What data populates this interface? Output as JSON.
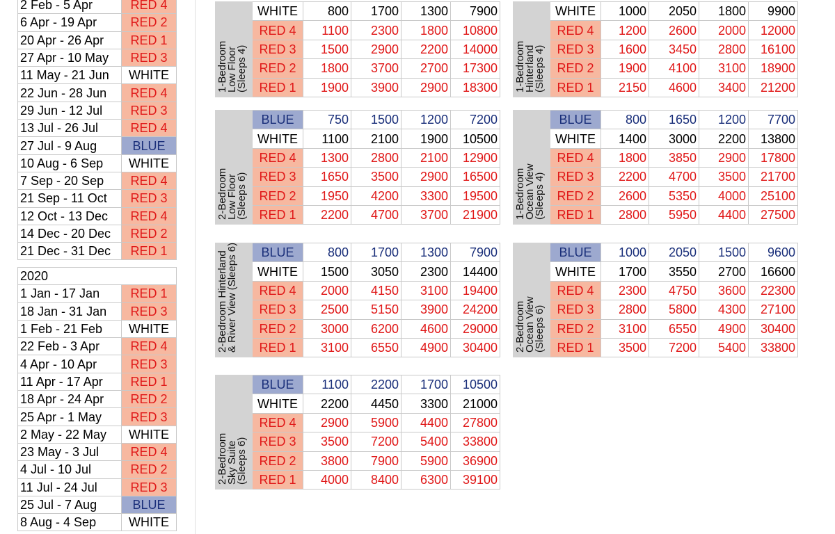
{
  "colors": {
    "blue": "#9da9cf",
    "red": "#f7b8a0",
    "red_text": "#e01818",
    "blue_text": "#1a2f7a"
  },
  "calendar_2019": [
    {
      "dates": "2 Feb - 5 Apr",
      "season": "RED 4"
    },
    {
      "dates": "6 Apr - 19 Apr",
      "season": "RED 2"
    },
    {
      "dates": "20 Apr - 26 Apr",
      "season": "RED 1"
    },
    {
      "dates": "27 Apr - 10 May",
      "season": "RED 3"
    },
    {
      "dates": "11 May - 21 Jun",
      "season": "WHITE"
    },
    {
      "dates": "22 Jun - 28 Jun",
      "season": "RED 4"
    },
    {
      "dates": "29 Jun - 12 Jul",
      "season": "RED 3"
    },
    {
      "dates": "13 Jul - 26 Jul",
      "season": "RED 4"
    },
    {
      "dates": "27 Jul - 9 Aug",
      "season": "BLUE"
    },
    {
      "dates": "10 Aug - 6 Sep",
      "season": "WHITE"
    },
    {
      "dates": "7 Sep - 20 Sep",
      "season": "RED 4"
    },
    {
      "dates": "21 Sep - 11 Oct",
      "season": "RED 3"
    },
    {
      "dates": "12 Oct - 13 Dec",
      "season": "RED 4"
    },
    {
      "dates": "14 Dec - 20 Dec",
      "season": "RED 2"
    },
    {
      "dates": "21 Dec - 31 Dec",
      "season": "RED 1"
    }
  ],
  "calendar_2020_year": "2020",
  "calendar_2020": [
    {
      "dates": "1 Jan - 17 Jan",
      "season": "RED 1"
    },
    {
      "dates": "18 Jan - 31 Jan",
      "season": "RED 3"
    },
    {
      "dates": "1 Feb - 21 Feb",
      "season": "WHITE"
    },
    {
      "dates": "22 Feb - 3 Apr",
      "season": "RED 4"
    },
    {
      "dates": "4 Apr - 10 Apr",
      "season": "RED 3"
    },
    {
      "dates": "11 Apr - 17 Apr",
      "season": "RED 1"
    },
    {
      "dates": "18 Apr - 24 Apr",
      "season": "RED 2"
    },
    {
      "dates": "25 Apr - 1 May",
      "season": "RED 3"
    },
    {
      "dates": "2 May - 22 May",
      "season": "WHITE"
    },
    {
      "dates": "23 May - 3 Jul",
      "season": "RED 4"
    },
    {
      "dates": "4 Jul - 10 Jul",
      "season": "RED 2"
    },
    {
      "dates": "11 Jul - 24 Jul",
      "season": "RED 3"
    },
    {
      "dates": "25 Jul - 7 Aug",
      "season": "BLUE"
    },
    {
      "dates": "8 Aug - 4 Sep",
      "season": "WHITE"
    }
  ],
  "blocks": [
    {
      "label_lines": [
        "1-Bedroom",
        "Low Floor",
        "(Sleeps 4)"
      ],
      "rows": [
        {
          "season": "WHITE",
          "values": [
            "800",
            "1700",
            "1300",
            "7900"
          ]
        },
        {
          "season": "RED 4",
          "values": [
            "1100",
            "2300",
            "1800",
            "10800"
          ]
        },
        {
          "season": "RED 3",
          "values": [
            "1500",
            "2900",
            "2200",
            "14000"
          ]
        },
        {
          "season": "RED 2",
          "values": [
            "1800",
            "3700",
            "2700",
            "17300"
          ]
        },
        {
          "season": "RED 1",
          "values": [
            "1900",
            "3900",
            "2900",
            "18300"
          ]
        }
      ]
    },
    {
      "label_lines": [
        "1-Bedroom",
        "Hinterland",
        "(Sleeps 4)"
      ],
      "rows": [
        {
          "season": "WHITE",
          "values": [
            "1000",
            "2050",
            "1800",
            "9900"
          ]
        },
        {
          "season": "RED 4",
          "values": [
            "1200",
            "2600",
            "2000",
            "12000"
          ]
        },
        {
          "season": "RED 3",
          "values": [
            "1600",
            "3450",
            "2800",
            "16100"
          ]
        },
        {
          "season": "RED 2",
          "values": [
            "1900",
            "4100",
            "3100",
            "18900"
          ]
        },
        {
          "season": "RED 1",
          "values": [
            "2150",
            "4600",
            "3400",
            "21200"
          ]
        }
      ]
    },
    {
      "label_lines": [
        "2-Bedroom",
        "Low Floor",
        "(Sleeps 6)"
      ],
      "rows": [
        {
          "season": "BLUE",
          "values": [
            "750",
            "1500",
            "1200",
            "7200"
          ]
        },
        {
          "season": "WHITE",
          "values": [
            "1100",
            "2100",
            "1900",
            "10500"
          ]
        },
        {
          "season": "RED 4",
          "values": [
            "1300",
            "2800",
            "2100",
            "12900"
          ]
        },
        {
          "season": "RED 3",
          "values": [
            "1650",
            "3500",
            "2900",
            "16500"
          ]
        },
        {
          "season": "RED 2",
          "values": [
            "1950",
            "4200",
            "3300",
            "19500"
          ]
        },
        {
          "season": "RED 1",
          "values": [
            "2200",
            "4700",
            "3700",
            "21900"
          ]
        }
      ]
    },
    {
      "label_lines": [
        "1-Bedroom",
        "Ocean View",
        "(Sleeps 4)"
      ],
      "rows": [
        {
          "season": "BLUE",
          "values": [
            "800",
            "1650",
            "1200",
            "7700"
          ]
        },
        {
          "season": "WHITE",
          "values": [
            "1400",
            "3000",
            "2200",
            "13800"
          ]
        },
        {
          "season": "RED 4",
          "values": [
            "1800",
            "3850",
            "2900",
            "17800"
          ]
        },
        {
          "season": "RED 3",
          "values": [
            "2200",
            "4700",
            "3500",
            "21700"
          ]
        },
        {
          "season": "RED 2",
          "values": [
            "2600",
            "5350",
            "4000",
            "25100"
          ]
        },
        {
          "season": "RED 1",
          "values": [
            "2800",
            "5950",
            "4400",
            "27500"
          ]
        }
      ]
    },
    {
      "label_lines": [
        "2-Bedroom Hinterland",
        "& River View (Sleeps 6)"
      ],
      "rows": [
        {
          "season": "BLUE",
          "values": [
            "800",
            "1700",
            "1300",
            "7900"
          ]
        },
        {
          "season": "WHITE",
          "values": [
            "1500",
            "3050",
            "2300",
            "14400"
          ]
        },
        {
          "season": "RED 4",
          "values": [
            "2000",
            "4150",
            "3100",
            "19400"
          ]
        },
        {
          "season": "RED 3",
          "values": [
            "2500",
            "5150",
            "3900",
            "24200"
          ]
        },
        {
          "season": "RED 2",
          "values": [
            "3000",
            "6200",
            "4600",
            "29000"
          ]
        },
        {
          "season": "RED 1",
          "values": [
            "3100",
            "6550",
            "4900",
            "30400"
          ]
        }
      ]
    },
    {
      "label_lines": [
        "2-Bedroom",
        "Ocean View",
        "(Sleeps 6)"
      ],
      "rows": [
        {
          "season": "BLUE",
          "values": [
            "1000",
            "2050",
            "1500",
            "9600"
          ]
        },
        {
          "season": "WHITE",
          "values": [
            "1700",
            "3550",
            "2700",
            "16600"
          ]
        },
        {
          "season": "RED 4",
          "values": [
            "2300",
            "4750",
            "3600",
            "22300"
          ]
        },
        {
          "season": "RED 3",
          "values": [
            "2800",
            "5800",
            "4300",
            "27100"
          ]
        },
        {
          "season": "RED 2",
          "values": [
            "3100",
            "6550",
            "4900",
            "30400"
          ]
        },
        {
          "season": "RED 1",
          "values": [
            "3500",
            "7200",
            "5400",
            "33800"
          ]
        }
      ]
    },
    {
      "label_lines": [
        "2-Bedroom",
        "Sky Suite",
        "(Sleeps 6)"
      ],
      "rows": [
        {
          "season": "BLUE",
          "values": [
            "1100",
            "2200",
            "1700",
            "10500"
          ]
        },
        {
          "season": "WHITE",
          "values": [
            "2200",
            "4450",
            "3300",
            "21000"
          ]
        },
        {
          "season": "RED 4",
          "values": [
            "2900",
            "5900",
            "4400",
            "27800"
          ]
        },
        {
          "season": "RED 3",
          "values": [
            "3500",
            "7200",
            "5400",
            "33800"
          ]
        },
        {
          "season": "RED 2",
          "values": [
            "3800",
            "7900",
            "5900",
            "36900"
          ]
        },
        {
          "season": "RED 1",
          "values": [
            "4000",
            "8400",
            "6300",
            "39100"
          ]
        }
      ]
    }
  ]
}
